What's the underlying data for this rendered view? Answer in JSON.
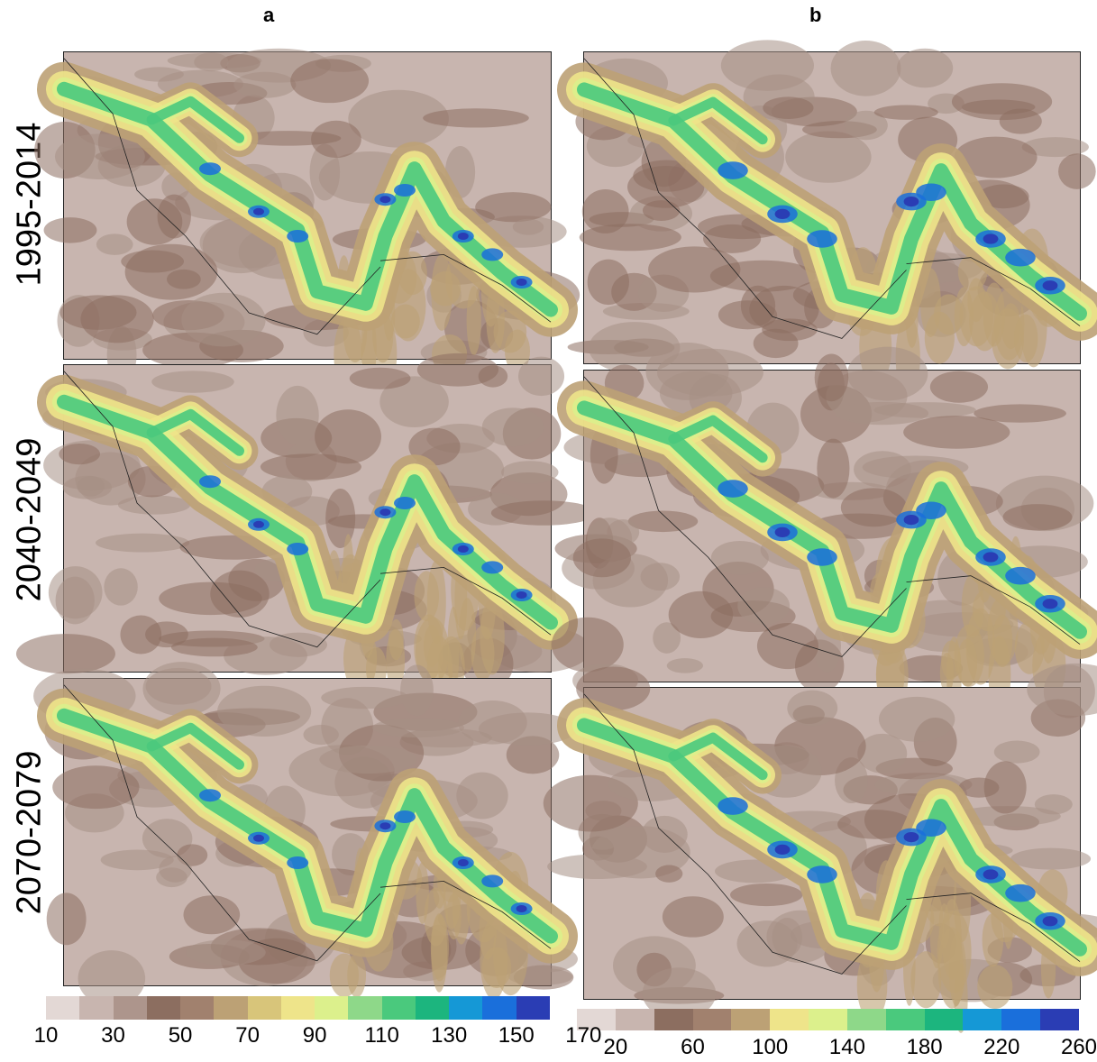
{
  "columns": [
    {
      "id": "a",
      "label": "a"
    },
    {
      "id": "b",
      "label": "b"
    }
  ],
  "rows": [
    {
      "label": "1995-2014"
    },
    {
      "label": "2040-2049"
    },
    {
      "label": "2070-2079"
    }
  ],
  "colorbars": [
    {
      "ticks": [
        "10",
        "30",
        "50",
        "70",
        "90",
        "110",
        "130",
        "150",
        "170"
      ],
      "colors": [
        "#e3d8d5",
        "#c8b5af",
        "#ad958c",
        "#8c6e60",
        "#a1816e",
        "#bca175",
        "#d8c57a",
        "#eee48a",
        "#dcf08c",
        "#8ed889",
        "#4ac97d",
        "#1cb57e",
        "#1598d6",
        "#1a6fdb",
        "#2a3db4"
      ]
    },
    {
      "ticks": [
        "20",
        "60",
        "100",
        "140",
        "180",
        "220",
        "260"
      ],
      "colors": [
        "#e3d8d5",
        "#c8b5af",
        "#8c6e60",
        "#a1816e",
        "#bca175",
        "#eee48a",
        "#dcf08c",
        "#8ed889",
        "#4ac97d",
        "#1cb57e",
        "#1598d6",
        "#1a6fdb",
        "#2a3db4"
      ]
    }
  ],
  "palette": {
    "low": "#c8b5af",
    "mid": "#8c6e60",
    "tan": "#bca175",
    "yellow": "#eee48a",
    "green": "#4ac97d",
    "blue": "#1a6fdb",
    "navy": "#2a3db4"
  }
}
